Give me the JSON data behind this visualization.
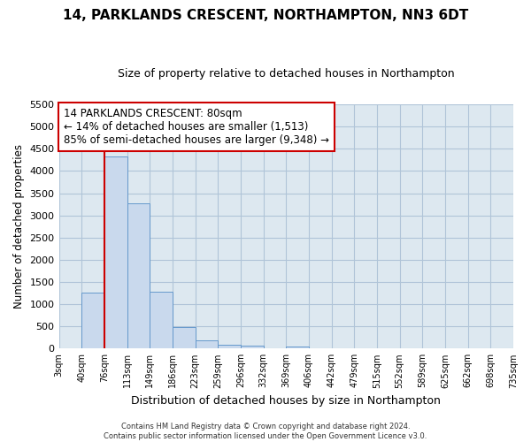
{
  "title": "14, PARKLANDS CRESCENT, NORTHAMPTON, NN3 6DT",
  "subtitle": "Size of property relative to detached houses in Northampton",
  "xlabel": "Distribution of detached houses by size in Northampton",
  "ylabel": "Number of detached properties",
  "bin_labels": [
    "3sqm",
    "40sqm",
    "76sqm",
    "113sqm",
    "149sqm",
    "186sqm",
    "223sqm",
    "259sqm",
    "296sqm",
    "332sqm",
    "369sqm",
    "406sqm",
    "442sqm",
    "479sqm",
    "515sqm",
    "552sqm",
    "589sqm",
    "625sqm",
    "662sqm",
    "698sqm",
    "735sqm"
  ],
  "bar_values": [
    0,
    1270,
    4330,
    3280,
    1280,
    480,
    190,
    90,
    60,
    0,
    50,
    0,
    0,
    0,
    0,
    0,
    0,
    0,
    0,
    0
  ],
  "bar_color": "#c9d9ed",
  "bar_edgecolor": "#6699cc",
  "ylim": [
    0,
    5500
  ],
  "yticks": [
    0,
    500,
    1000,
    1500,
    2000,
    2500,
    3000,
    3500,
    4000,
    4500,
    5000,
    5500
  ],
  "vline_color": "#cc0000",
  "annotation_title": "14 PARKLANDS CRESCENT: 80sqm",
  "annotation_line1": "← 14% of detached houses are smaller (1,513)",
  "annotation_line2": "85% of semi-detached houses are larger (9,348) →",
  "annotation_box_facecolor": "#ffffff",
  "annotation_box_edgecolor": "#cc0000",
  "footer1": "Contains HM Land Registry data © Crown copyright and database right 2024.",
  "footer2": "Contains public sector information licensed under the Open Government Licence v3.0.",
  "background_color": "#ffffff",
  "axes_facecolor": "#dde8f0",
  "grid_color": "#b0c4d8"
}
